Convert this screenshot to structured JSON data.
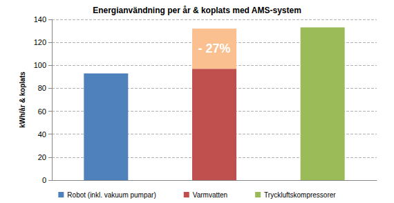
{
  "chart_data": {
    "type": "bar",
    "title": "Energianvändning per år & koplats med AMS-system",
    "y_label": "kWh/år & koplats",
    "categories": [
      null,
      null,
      null
    ],
    "series": [
      {
        "name": "Robot (inkl. vakuum pumpar)",
        "color": "#4f81bd",
        "values": [
          93,
          null,
          null
        ]
      },
      {
        "name": "Varmvatten",
        "color": "#c0504d",
        "values": [
          null,
          97,
          null
        ]
      },
      {
        "color": "#fac090",
        "values": [
          null,
          35,
          null
        ]
      },
      {
        "name": "Tryckluftskompressorer",
        "color": "#9bbb59",
        "values": [
          null,
          null,
          133
        ]
      }
    ],
    "annotations": [
      "- 27%"
    ],
    "stacked": true,
    "ylim": [
      0,
      140
    ],
    "yticks": [
      0,
      20,
      40,
      60,
      80,
      100,
      120,
      140
    ],
    "grid": true,
    "legend": "bottom",
    "tick_labels": "y"
  }
}
